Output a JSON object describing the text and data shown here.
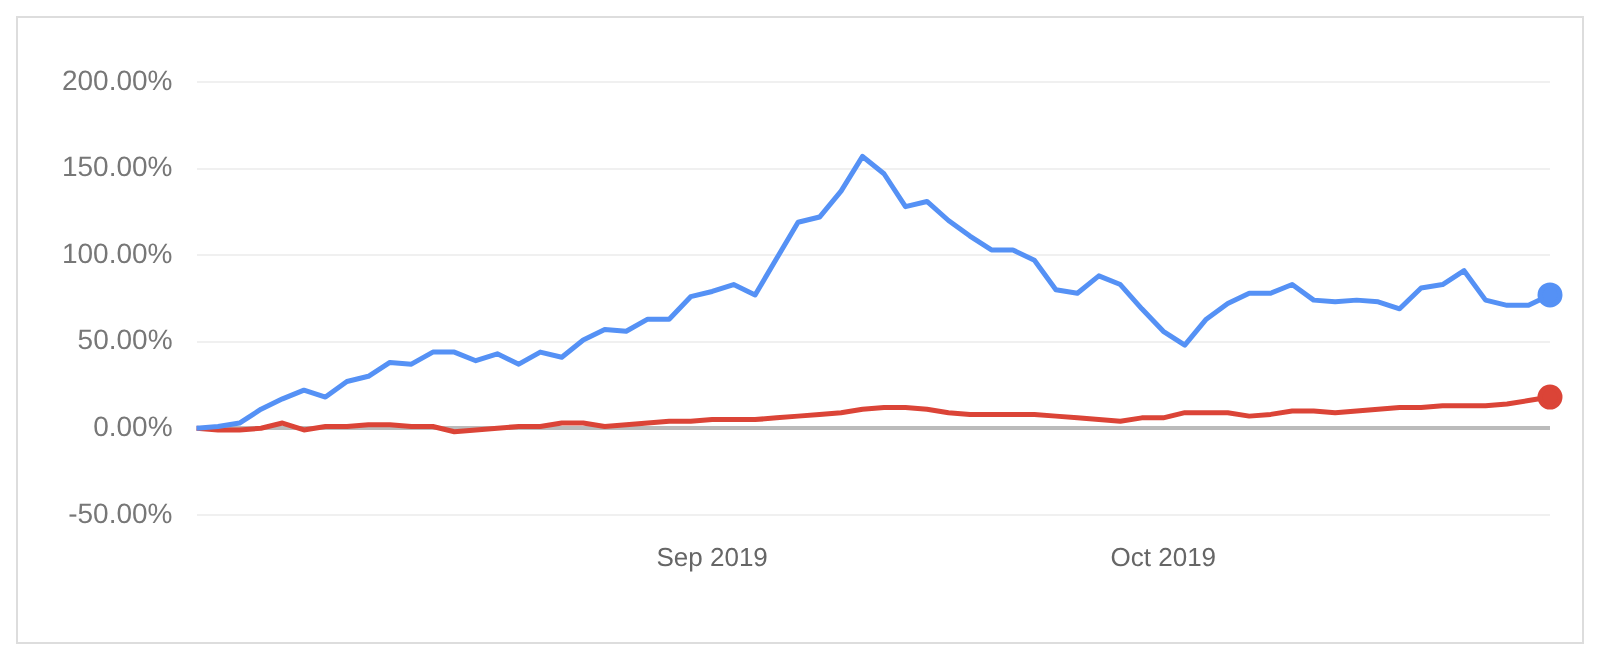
{
  "chart_data": {
    "type": "line",
    "categories": [
      null,
      null,
      null,
      null,
      null,
      null,
      null,
      null,
      null,
      null,
      null,
      null,
      null,
      null,
      null,
      null,
      null,
      null,
      null,
      null,
      null,
      null,
      null,
      null,
      "Sep 2019",
      null,
      null,
      null,
      null,
      null,
      null,
      null,
      null,
      null,
      null,
      null,
      null,
      null,
      null,
      null,
      null,
      null,
      null,
      null,
      null,
      "Oct 2019",
      null,
      null,
      null,
      null,
      null,
      null,
      null,
      null,
      null,
      null,
      null,
      null,
      null,
      null,
      null,
      null,
      null,
      null
    ],
    "series": [
      {
        "color": "#5591f5",
        "values": [
          0,
          1,
          3,
          11,
          17,
          22,
          18,
          27,
          30,
          38,
          37,
          44,
          44,
          39,
          43,
          37,
          44,
          41,
          51,
          57,
          56,
          63,
          63,
          76,
          79,
          83,
          77,
          98,
          119,
          122,
          137,
          157,
          147,
          128,
          131,
          120,
          111,
          103,
          103,
          97,
          80,
          78,
          88,
          83,
          69,
          56,
          48,
          63,
          72,
          78,
          78,
          83,
          74,
          73,
          74,
          73,
          69,
          81,
          83,
          91,
          74,
          71,
          71,
          77
        ]
      },
      {
        "color": "#db4437",
        "values": [
          0,
          -1,
          -1,
          0,
          3,
          -1,
          1,
          1,
          2,
          2,
          1,
          1,
          -2,
          -1,
          0,
          1,
          1,
          3,
          3,
          1,
          2,
          3,
          4,
          4,
          5,
          5,
          5,
          6,
          7,
          8,
          9,
          11,
          12,
          12,
          11,
          9,
          8,
          8,
          8,
          8,
          7,
          6,
          5,
          4,
          6,
          6,
          9,
          9,
          9,
          7,
          8,
          10,
          10,
          9,
          10,
          11,
          12,
          12,
          13,
          13,
          13,
          14,
          16,
          18
        ]
      }
    ],
    "ylim": [
      -50,
      200
    ],
    "yticks": [
      {
        "value": -50,
        "label": "-50.00%"
      },
      {
        "value": 0,
        "label": "0.00%"
      },
      {
        "value": 50,
        "label": "50.00%"
      },
      {
        "value": 100,
        "label": "100.00%"
      },
      {
        "value": 150,
        "label": "150.00%"
      },
      {
        "value": 200,
        "label": "200.00%"
      }
    ],
    "grid": "y",
    "legend": false
  }
}
